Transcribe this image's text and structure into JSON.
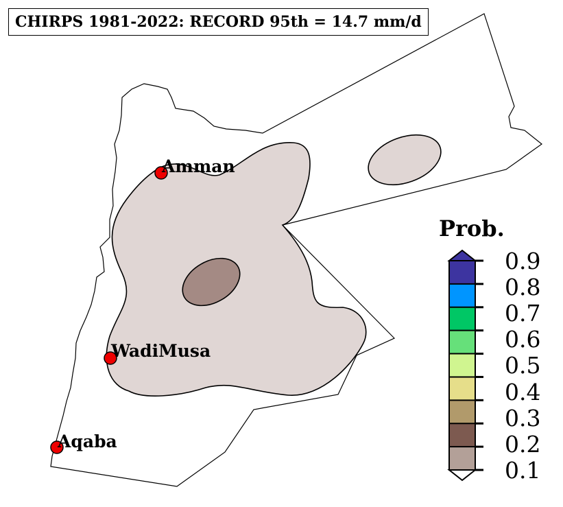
{
  "title": "CHIRPS 1981-2022: RECORD 95th = 14.7 mm/d",
  "colors": {
    "land_fill": "#ffffff",
    "border": "#000000",
    "contour_low": "#e0d6d4",
    "contour_mid": "#a48a84",
    "marker": "#ee0000"
  },
  "cities": [
    {
      "name": "Amman"
    },
    {
      "name": "WadiMusa"
    },
    {
      "name": "Aqaba"
    }
  ],
  "legend": {
    "title": "Prob.",
    "ticks": [
      "0.9",
      "0.8",
      "0.7",
      "0.6",
      "0.5",
      "0.4",
      "0.3",
      "0.2",
      "0.1"
    ],
    "colors": [
      "#b3a098",
      "#7d5a50",
      "#b19a6b",
      "#e6de8a",
      "#d0f590",
      "#66e07a",
      "#00c765",
      "#0095ff",
      "#3d34a0"
    ],
    "extend_low_color": "#ffffff",
    "extend_high_color": "#3d34a0"
  }
}
